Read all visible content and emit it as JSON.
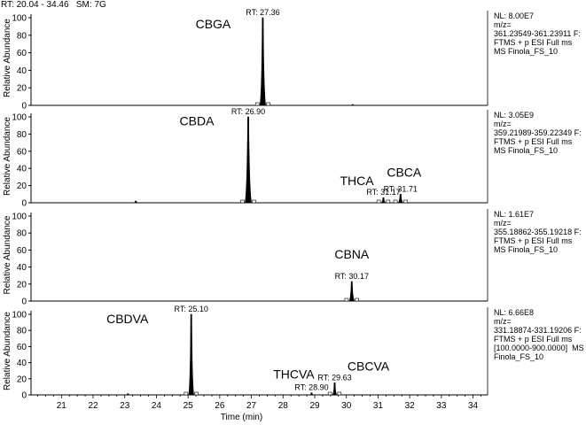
{
  "header": {
    "rt_range": "RT: 20.04 - 34.46",
    "sm": "SM: 7G"
  },
  "chart_data": [
    {
      "type": "line",
      "ylabel": "Relative Abundance",
      "ylim": [
        0,
        100
      ],
      "yticks": [
        0,
        20,
        40,
        60,
        80,
        100
      ],
      "xlim": [
        20.04,
        34.46
      ],
      "info": {
        "nl": "NL: 8.00E7",
        "filter": [
          "m/z=",
          "361.23549-361.23911 F:",
          "FTMS + p ESI Full ms",
          "MS Finola_FS_10"
        ]
      },
      "peaks": [
        {
          "rt": 27.36,
          "height": 100,
          "width": 0.18,
          "rt_label": "RT: 27.36",
          "name": "CBGA"
        },
        {
          "rt": 30.2,
          "height": 1,
          "width": 0.06,
          "rt_label": "",
          "name": ""
        }
      ]
    },
    {
      "type": "line",
      "ylabel": "Relative Abundance",
      "ylim": [
        0,
        100
      ],
      "yticks": [
        0,
        20,
        40,
        60,
        80,
        100
      ],
      "xlim": [
        20.04,
        34.46
      ],
      "info": {
        "nl": "NL: 3.05E9",
        "filter": [
          "m/z=",
          "359.21989-359.22349 F:",
          "FTMS + p ESI Full ms",
          "MS Finola_FS_10"
        ]
      },
      "peaks": [
        {
          "rt": 23.35,
          "height": 2,
          "width": 0.1,
          "rt_label": "",
          "name": ""
        },
        {
          "rt": 26.9,
          "height": 100,
          "width": 0.2,
          "rt_label": "RT: 26.90",
          "name": "CBDA"
        },
        {
          "rt": 31.17,
          "height": 6,
          "width": 0.13,
          "rt_label": "RT: 31.17",
          "name": "THCA"
        },
        {
          "rt": 31.71,
          "height": 10,
          "width": 0.15,
          "rt_label": "RT: 31.71",
          "name": "CBCA"
        }
      ]
    },
    {
      "type": "line",
      "ylabel": "Relative Abundance",
      "ylim": [
        0,
        100
      ],
      "yticks": [
        0,
        20,
        40,
        60,
        80,
        100
      ],
      "xlim": [
        20.04,
        34.46
      ],
      "info": {
        "nl": "NL: 1.61E7",
        "filter": [
          "m/z=",
          "355.18862-355.19218 F:",
          "FTMS + p ESI Full ms",
          "MS Finola_FS_10"
        ]
      },
      "peaks": [
        {
          "rt": 30.17,
          "height": 23,
          "width": 0.16,
          "rt_label": "RT: 30.17",
          "name": "CBNA"
        }
      ]
    },
    {
      "type": "line",
      "ylabel": "Relative Abundance",
      "ylim": [
        0,
        100
      ],
      "yticks": [
        0,
        20,
        40,
        60,
        80,
        100
      ],
      "xlim": [
        20.04,
        34.46
      ],
      "xlabel": "Time (min)",
      "xticks": [
        21,
        22,
        23,
        24,
        25,
        26,
        27,
        28,
        29,
        30,
        31,
        32,
        33,
        34
      ],
      "info": {
        "nl": "NL: 6.66E8",
        "filter": [
          "m/z=",
          "331.18874-331.19206 F:",
          "FTMS + p ESI Full ms",
          "[100.0000-900.0000]  MS",
          "Finola_FS_10"
        ]
      },
      "peaks": [
        {
          "rt": 23.1,
          "height": 1.5,
          "width": 0.1,
          "rt_label": "",
          "name": ""
        },
        {
          "rt": 25.1,
          "height": 100,
          "width": 0.16,
          "rt_label": "RT: 25.10",
          "name": "CBDVA"
        },
        {
          "rt": 28.9,
          "height": 2.5,
          "width": 0.1,
          "rt_label": "RT: 28.90",
          "name": "THCVA"
        },
        {
          "rt": 29.63,
          "height": 15,
          "width": 0.13,
          "rt_label": "RT: 29.63",
          "name": "CBCVA"
        }
      ]
    }
  ]
}
